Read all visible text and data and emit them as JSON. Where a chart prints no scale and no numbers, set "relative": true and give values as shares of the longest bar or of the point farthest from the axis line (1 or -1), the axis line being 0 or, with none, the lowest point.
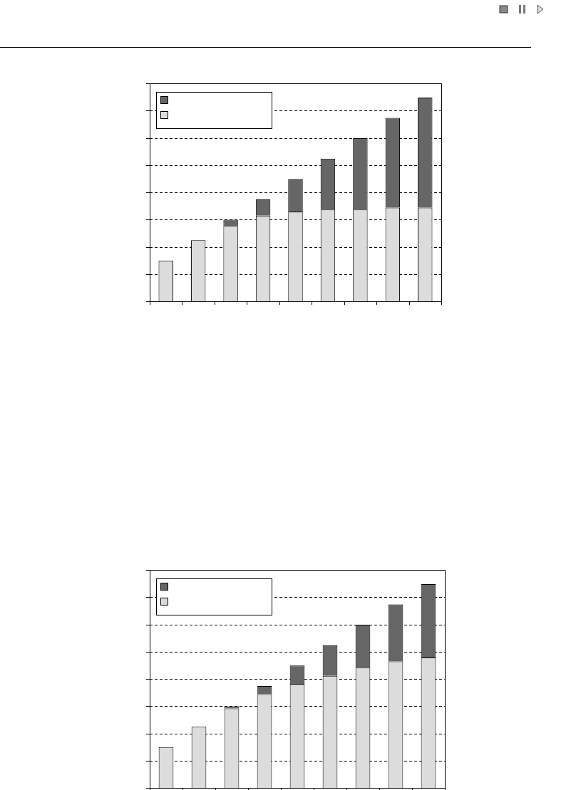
{
  "chart_data": [
    {
      "type": "bar",
      "stacked": true,
      "relative": true,
      "grid": "y",
      "categories": [
        null,
        null,
        null,
        null,
        null,
        null,
        null,
        null,
        null
      ],
      "series": [
        {
          "color": "#dcdcdc",
          "values": [
            0.2,
            0.3,
            0.37,
            0.42,
            0.44,
            0.45,
            0.45,
            0.46,
            0.46
          ]
        },
        {
          "color": "#666666",
          "values": [
            0,
            0,
            0.03,
            0.08,
            0.16,
            0.25,
            0.35,
            0.44,
            0.54
          ]
        }
      ]
    },
    {
      "type": "bar",
      "stacked": true,
      "relative": true,
      "grid": "y",
      "categories": [
        null,
        null,
        null,
        null,
        null,
        null,
        null,
        null,
        null
      ],
      "series": [
        {
          "color": "#dcdcdc",
          "values": [
            0.2,
            0.3,
            0.39,
            0.46,
            0.51,
            0.55,
            0.59,
            0.62,
            0.64
          ]
        },
        {
          "color": "#666666",
          "values": [
            0,
            0,
            0.01,
            0.04,
            0.09,
            0.15,
            0.21,
            0.28,
            0.36
          ]
        }
      ]
    }
  ]
}
